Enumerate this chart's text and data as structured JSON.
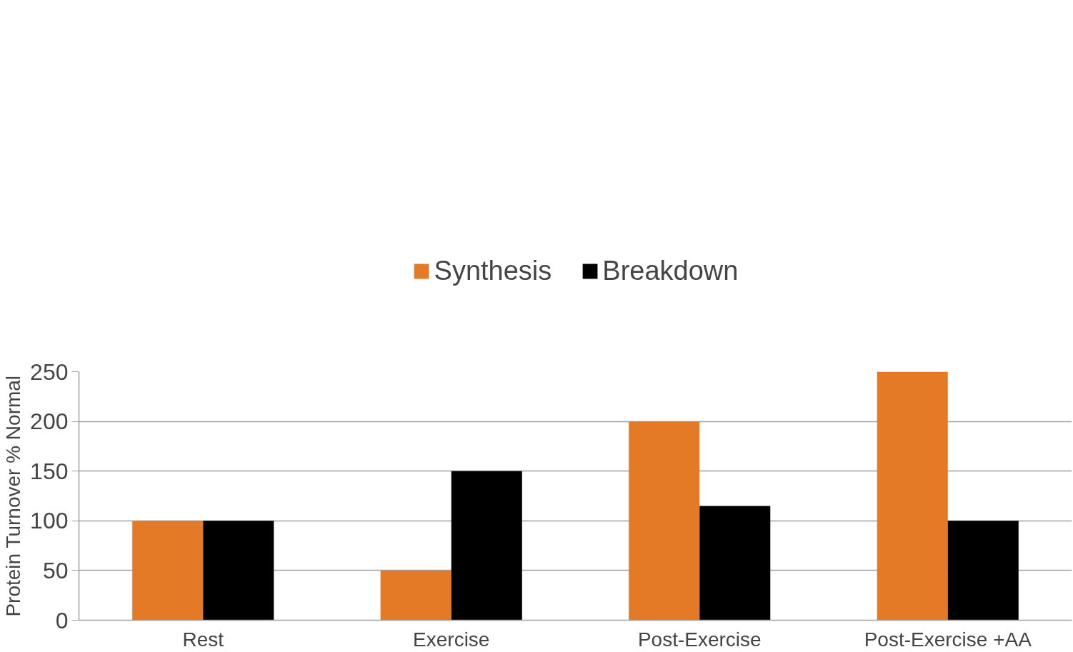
{
  "chart_data": {
    "type": "bar",
    "ylabel": "Protein Turnover % Normal",
    "categories": [
      "Rest",
      "Exercise",
      "Post-Exercise",
      "Post-Exercise +AA"
    ],
    "series": [
      {
        "name": "Synthesis",
        "color": "#e47a25",
        "values": [
          100,
          50,
          200,
          250
        ]
      },
      {
        "name": "Breakdown",
        "color": "#000000",
        "values": [
          100,
          150,
          115,
          100
        ]
      }
    ],
    "ylim": [
      0,
      250
    ],
    "yticks": [
      0,
      50,
      100,
      150,
      200,
      250
    ],
    "grid": "y",
    "legend": "top"
  }
}
